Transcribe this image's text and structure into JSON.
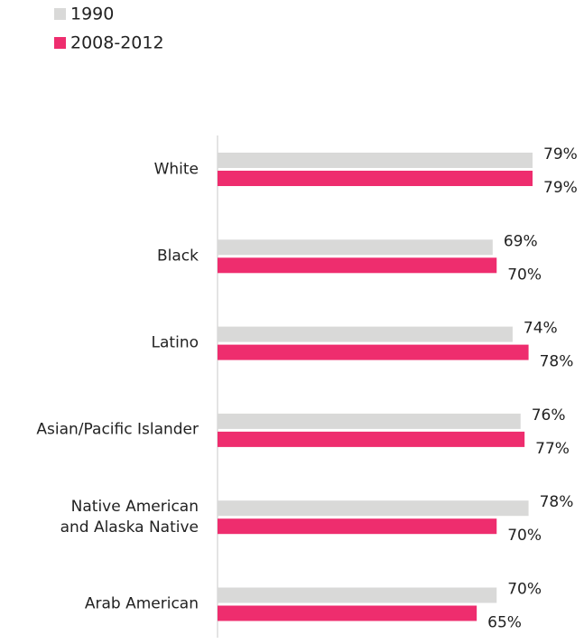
{
  "chart_data": {
    "type": "bar",
    "orientation": "horizontal",
    "categories": [
      "White",
      "Black",
      "Latino",
      "Asian/Pacific Islander",
      "Native American\nand Alaska Native",
      "Arab American"
    ],
    "series": [
      {
        "name": "1990",
        "color": "#d9d9d8",
        "values": [
          79,
          69,
          74,
          76,
          78,
          70
        ],
        "value_labels": [
          "79%",
          "69%",
          "74%",
          "76%",
          "78%",
          "70%"
        ]
      },
      {
        "name": "2008-2012",
        "color": "#ee2d6e",
        "values": [
          79,
          70,
          78,
          77,
          70,
          65
        ],
        "value_labels": [
          "79%",
          "70%",
          "78%",
          "77%",
          "70%",
          "65%"
        ]
      }
    ]
  }
}
